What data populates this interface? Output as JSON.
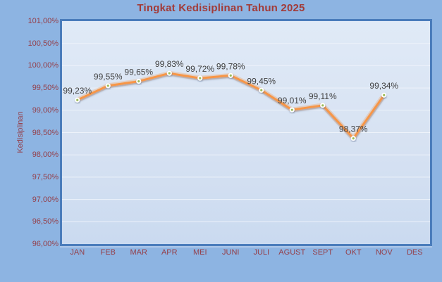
{
  "title": "Tingkat Kedisiplinan Tahun 2025",
  "colors": {
    "background": "#8DB4E2",
    "plot_border": "#4A7CBB",
    "plot_fill_top": "#E0EAF7",
    "plot_fill_bottom": "#CADAF0",
    "gridline": "#EDF2FA",
    "line": "#F79646",
    "marker_fill": "#9BBB59",
    "marker_ring": "#FFFFFF",
    "title_text": "#A23B38",
    "axis_text": "#94404B",
    "data_label_text": "#3F3F3F",
    "bevel": "#AEC8EA"
  },
  "chart_data": {
    "type": "line",
    "title": "Tingkat Kedisiplinan Tahun 2025",
    "xlabel": "",
    "ylabel": "Kedisiplinan",
    "categories": [
      "JAN",
      "FEB",
      "MAR",
      "APR",
      "MEI",
      "JUNI",
      "JULI",
      "AGUST",
      "SEPT",
      "OKT",
      "NOV",
      "DES"
    ],
    "values": [
      99.23,
      99.55,
      99.65,
      99.83,
      99.72,
      99.78,
      99.45,
      99.01,
      99.11,
      98.37,
      99.34,
      null
    ],
    "data_labels": [
      "99,23%",
      "99,55%",
      "99,65%",
      "99,83%",
      "99,72%",
      "99,78%",
      "99,45%",
      "99,01%",
      "99,11%",
      "98,37%",
      "99,34%",
      ""
    ],
    "ylim": [
      96,
      101
    ],
    "ytick_step": 0.5,
    "ytick_labels": [
      "101,00%",
      "100,50%",
      "100,00%",
      "99,50%",
      "99,00%",
      "98,50%",
      "98,00%",
      "97,50%",
      "97,00%",
      "96,50%",
      "96,00%"
    ],
    "grid": true,
    "legend": "none"
  }
}
